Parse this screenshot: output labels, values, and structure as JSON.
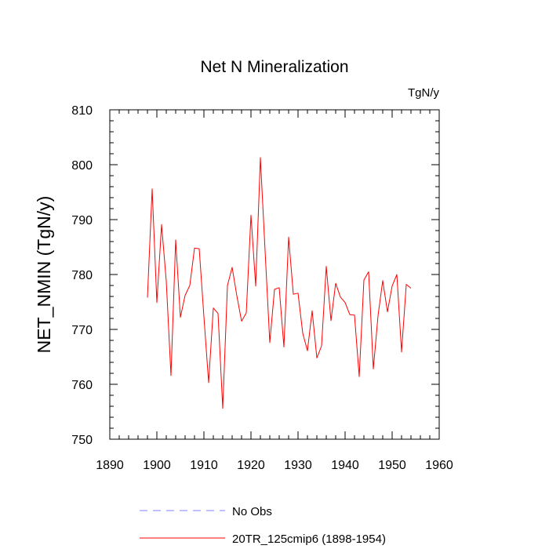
{
  "chart_data": {
    "type": "line",
    "title": "Net N Mineralization",
    "units_label": "TgN/y",
    "xlabel": "",
    "ylabel": "NET_NMIN  (TgN/y)",
    "xlim": [
      1890,
      1960
    ],
    "ylim": [
      750,
      810
    ],
    "xticks": [
      1890,
      1900,
      1910,
      1920,
      1930,
      1940,
      1950,
      1960
    ],
    "yticks": [
      750,
      760,
      770,
      780,
      790,
      800,
      810
    ],
    "x_minor_step": 2,
    "y_minor_step": 2,
    "grid": false,
    "legend": [
      {
        "label": "No Obs",
        "color": "#8080ff",
        "style": "dashed"
      },
      {
        "label": "20TR_125cmip6 (1898-1954)",
        "color": "#ff0000",
        "style": "solid"
      }
    ],
    "series": [
      {
        "name": "20TR_125cmip6 (1898-1954)",
        "color": "#ff0000",
        "x": [
          1898,
          1899,
          1900,
          1901,
          1902,
          1903,
          1904,
          1905,
          1906,
          1907,
          1908,
          1909,
          1910,
          1911,
          1912,
          1913,
          1914,
          1915,
          1916,
          1917,
          1918,
          1919,
          1920,
          1921,
          1922,
          1923,
          1924,
          1925,
          1926,
          1927,
          1928,
          1929,
          1930,
          1931,
          1932,
          1933,
          1934,
          1935,
          1936,
          1937,
          1938,
          1939,
          1940,
          1941,
          1942,
          1943,
          1944,
          1945,
          1946,
          1947,
          1948,
          1949,
          1950,
          1951,
          1952,
          1953,
          1954
        ],
        "values": [
          775.8,
          795.6,
          774.9,
          789.1,
          778.8,
          761.6,
          786.3,
          772.2,
          776.2,
          778.0,
          784.8,
          784.7,
          772.3,
          760.3,
          773.9,
          772.9,
          755.6,
          778.0,
          781.3,
          776.1,
          771.5,
          773.0,
          790.8,
          777.9,
          801.3,
          784.3,
          767.6,
          777.3,
          777.6,
          766.8,
          786.8,
          776.4,
          776.6,
          769.3,
          766.1,
          773.4,
          764.8,
          767.0,
          781.5,
          771.6,
          778.4,
          775.9,
          774.9,
          772.7,
          772.6,
          761.4,
          779.0,
          780.5,
          762.8,
          772.5,
          778.9,
          773.2,
          777.9,
          780.0,
          765.9,
          778.2,
          777.5
        ]
      }
    ]
  }
}
